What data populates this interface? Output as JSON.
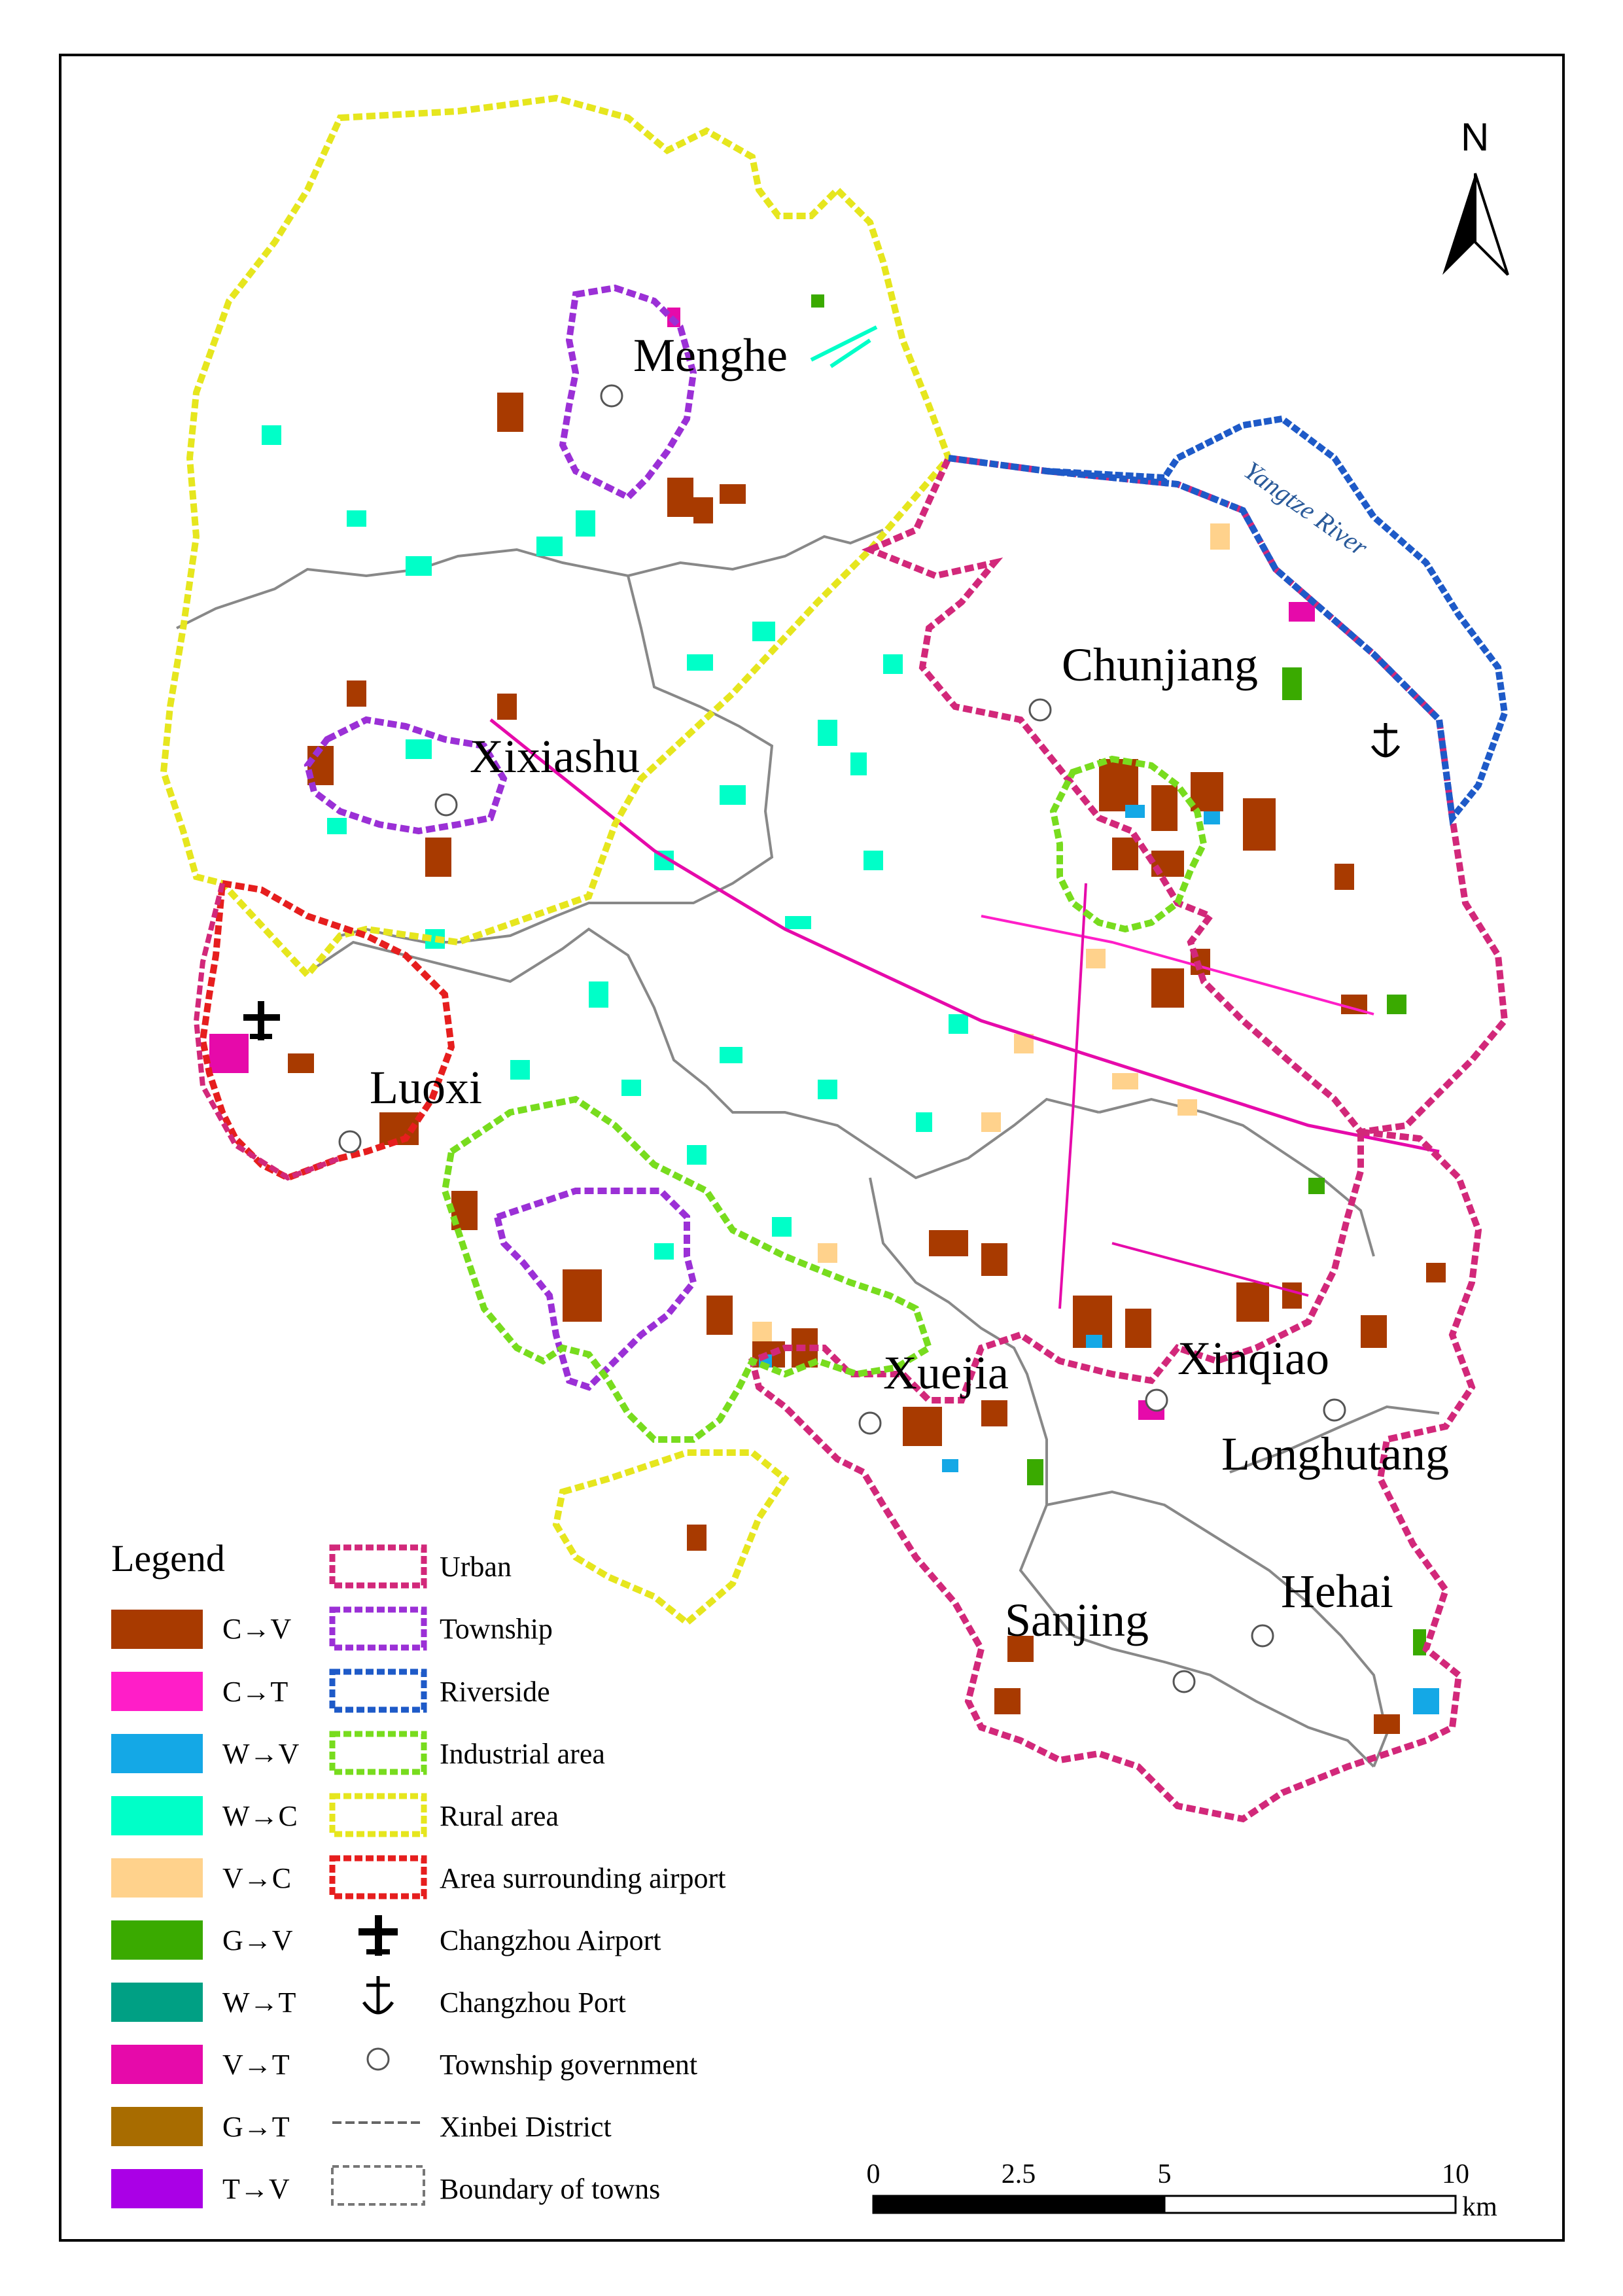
{
  "map": {
    "north_label": "N",
    "river_label": "Yangtze River",
    "towns": [
      {
        "key": "menghe",
        "name": "Menghe"
      },
      {
        "key": "chunjiang",
        "name": "Chunjiang"
      },
      {
        "key": "xixiashu",
        "name": "Xixiashu"
      },
      {
        "key": "luoxi",
        "name": "Luoxi"
      },
      {
        "key": "xuejia",
        "name": "Xuejia"
      },
      {
        "key": "xinqiao",
        "name": "Xinqiao"
      },
      {
        "key": "longhutang",
        "name": "Longhutang"
      },
      {
        "key": "sanjing",
        "name": "Sanjing"
      },
      {
        "key": "hehai",
        "name": "Hehai"
      }
    ]
  },
  "legend": {
    "title": "Legend",
    "land_change": [
      {
        "label": "C→V",
        "color": "#a83a00"
      },
      {
        "label": "C→T",
        "color": "#ff1ec8"
      },
      {
        "label": "W→V",
        "color": "#14a8e6"
      },
      {
        "label": "W→C",
        "color": "#00ffc8"
      },
      {
        "label": "V→C",
        "color": "#ffd28c"
      },
      {
        "label": "G→V",
        "color": "#3aaa00"
      },
      {
        "label": "W→T",
        "color": "#00a084"
      },
      {
        "label": "V→T",
        "color": "#e60aaa"
      },
      {
        "label": "G→T",
        "color": "#a86c00"
      },
      {
        "label": "T→V",
        "color": "#aa00e6"
      }
    ],
    "zones": [
      {
        "label": "Urban",
        "color": "#d2287a"
      },
      {
        "label": "Township",
        "color": "#9b30d6"
      },
      {
        "label": "Riverside",
        "color": "#1e5ac8"
      },
      {
        "label": "Industrial area",
        "color": "#78dc1e"
      },
      {
        "label": "Rural area",
        "color": "#e6e61e"
      },
      {
        "label": "Area surrounding airport",
        "color": "#e61e1e"
      }
    ],
    "symbols": [
      {
        "label": "Changzhou Airport",
        "icon": "airplane-icon"
      },
      {
        "label": "Changzhou Port",
        "icon": "anchor-icon"
      },
      {
        "label": "Township government",
        "icon": "circle-icon"
      },
      {
        "label": "Xinbei District",
        "icon": "dashed-line"
      },
      {
        "label": "Boundary of towns",
        "icon": "dashed-box"
      }
    ]
  },
  "scale_bar": {
    "ticks": [
      "0",
      "2.5",
      "5",
      "10"
    ],
    "unit": "km"
  }
}
